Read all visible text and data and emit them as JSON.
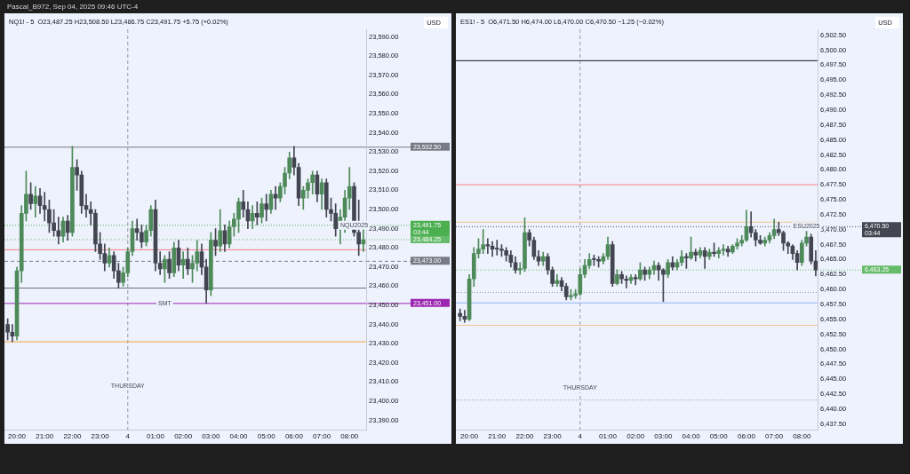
{
  "chart_data": [
    {
      "type": "candlestick",
      "title": "NQ1! - 5  O23,487.25 H23,508.50 L23,486.75 C23,491.75 +5.75 (+0.02%)",
      "ylabel": "USD",
      "annotations": [
        "Pascal_B972, Sep 04, 2025 09:46 UTC-4",
        {
          "text": "THURSDAY",
          "x": "2025-09-04T00:00",
          "y": 23408
        },
        {
          "text": "SMT",
          "x": "2025-09-04T01:20",
          "y": 23451
        },
        {
          "text": "NQU2025",
          "x": "2025-09-04T08:10",
          "y": 23491.75
        }
      ],
      "x": [
        "2025-09-03T19:40",
        "2025-09-03T19:50",
        "2025-09-03T20:00",
        "2025-09-03T20:10",
        "2025-09-03T20:20",
        "2025-09-03T20:30",
        "2025-09-03T20:40",
        "2025-09-03T20:50",
        "2025-09-03T21:00",
        "2025-09-03T21:10",
        "2025-09-03T21:20",
        "2025-09-03T21:30",
        "2025-09-03T21:40",
        "2025-09-03T21:50",
        "2025-09-03T22:00",
        "2025-09-03T22:10",
        "2025-09-03T22:20",
        "2025-09-03T22:30",
        "2025-09-03T22:40",
        "2025-09-03T22:50",
        "2025-09-03T23:00",
        "2025-09-03T23:10",
        "2025-09-03T23:20",
        "2025-09-03T23:30",
        "2025-09-03T23:40",
        "2025-09-03T23:50",
        "2025-09-04T00:00",
        "2025-09-04T00:10",
        "2025-09-04T00:20",
        "2025-09-04T00:30",
        "2025-09-04T00:40",
        "2025-09-04T00:50",
        "2025-09-04T01:00",
        "2025-09-04T01:10",
        "2025-09-04T01:20",
        "2025-09-04T01:30",
        "2025-09-04T01:40",
        "2025-09-04T01:50",
        "2025-09-04T02:00",
        "2025-09-04T02:10",
        "2025-09-04T02:20",
        "2025-09-04T02:30",
        "2025-09-04T02:40",
        "2025-09-04T02:50",
        "2025-09-04T03:00",
        "2025-09-04T03:10",
        "2025-09-04T03:20",
        "2025-09-04T03:30",
        "2025-09-04T03:40",
        "2025-09-04T03:50",
        "2025-09-04T04:00",
        "2025-09-04T04:10",
        "2025-09-04T04:20",
        "2025-09-04T04:30",
        "2025-09-04T04:40",
        "2025-09-04T04:50",
        "2025-09-04T05:00",
        "2025-09-04T05:10",
        "2025-09-04T05:20",
        "2025-09-04T05:30",
        "2025-09-04T05:40",
        "2025-09-04T05:50",
        "2025-09-04T06:00",
        "2025-09-04T06:10",
        "2025-09-04T06:20",
        "2025-09-04T06:30",
        "2025-09-04T06:40",
        "2025-09-04T06:50",
        "2025-09-04T07:00",
        "2025-09-04T07:10",
        "2025-09-04T07:20",
        "2025-09-04T07:30",
        "2025-09-04T07:40",
        "2025-09-04T07:50",
        "2025-09-04T08:00",
        "2025-09-04T08:10",
        "2025-09-04T08:20",
        "2025-09-04T08:30"
      ],
      "ohlc": [
        [
          23440,
          23443,
          23432,
          23436
        ],
        [
          23436,
          23440,
          23431,
          23434
        ],
        [
          23434,
          23470,
          23432,
          23468
        ],
        [
          23468,
          23502,
          23462,
          23498
        ],
        [
          23498,
          23520,
          23494,
          23508
        ],
        [
          23508,
          23514,
          23500,
          23503
        ],
        [
          23503,
          23512,
          23496,
          23507
        ],
        [
          23507,
          23511,
          23498,
          23502
        ],
        [
          23502,
          23509,
          23494,
          23500
        ],
        [
          23500,
          23505,
          23488,
          23493
        ],
        [
          23493,
          23500,
          23486,
          23489
        ],
        [
          23489,
          23496,
          23482,
          23486
        ],
        [
          23486,
          23496,
          23483,
          23494
        ],
        [
          23494,
          23497,
          23484,
          23488
        ],
        [
          23488,
          23533,
          23486,
          23522
        ],
        [
          23522,
          23526,
          23510,
          23518
        ],
        [
          23518,
          23520,
          23498,
          23502
        ],
        [
          23502,
          23508,
          23496,
          23500
        ],
        [
          23500,
          23504,
          23492,
          23498
        ],
        [
          23498,
          23500,
          23478,
          23482
        ],
        [
          23482,
          23488,
          23474,
          23477
        ],
        [
          23477,
          23482,
          23468,
          23472
        ],
        [
          23472,
          23480,
          23470,
          23476
        ],
        [
          23476,
          23478,
          23464,
          23468
        ],
        [
          23468,
          23472,
          23459,
          23462
        ],
        [
          23462,
          23470,
          23460,
          23467
        ],
        [
          23467,
          23480,
          23465,
          23478
        ],
        [
          23478,
          23494,
          23476,
          23490
        ],
        [
          23490,
          23495,
          23484,
          23488
        ],
        [
          23488,
          23492,
          23480,
          23483
        ],
        [
          23483,
          23492,
          23481,
          23489
        ],
        [
          23489,
          23502,
          23486,
          23500
        ],
        [
          23500,
          23505,
          23468,
          23472
        ],
        [
          23472,
          23478,
          23466,
          23469
        ],
        [
          23469,
          23476,
          23462,
          23474
        ],
        [
          23474,
          23478,
          23464,
          23467
        ],
        [
          23467,
          23483,
          23465,
          23480
        ],
        [
          23480,
          23484,
          23468,
          23471
        ],
        [
          23471,
          23478,
          23464,
          23474
        ],
        [
          23474,
          23480,
          23466,
          23469
        ],
        [
          23469,
          23476,
          23462,
          23472
        ],
        [
          23472,
          23484,
          23468,
          23478
        ],
        [
          23478,
          23482,
          23466,
          23470
        ],
        [
          23470,
          23474,
          23451,
          23458
        ],
        [
          23458,
          23488,
          23455,
          23484
        ],
        [
          23484,
          23490,
          23476,
          23481
        ],
        [
          23481,
          23500,
          23478,
          23489
        ],
        [
          23489,
          23492,
          23478,
          23482
        ],
        [
          23482,
          23494,
          23480,
          23491
        ],
        [
          23491,
          23498,
          23486,
          23495
        ],
        [
          23495,
          23506,
          23488,
          23504
        ],
        [
          23504,
          23510,
          23496,
          23500
        ],
        [
          23500,
          23504,
          23490,
          23494
        ],
        [
          23494,
          23502,
          23490,
          23498
        ],
        [
          23498,
          23504,
          23492,
          23496
        ],
        [
          23496,
          23506,
          23493,
          23503
        ],
        [
          23503,
          23508,
          23494,
          23500
        ],
        [
          23500,
          23510,
          23498,
          23508
        ],
        [
          23508,
          23512,
          23500,
          23506
        ],
        [
          23506,
          23514,
          23504,
          23512
        ],
        [
          23512,
          23522,
          23508,
          23519
        ],
        [
          23519,
          23530,
          23516,
          23527
        ],
        [
          23527,
          23533,
          23518,
          23522
        ],
        [
          23522,
          23524,
          23502,
          23506
        ],
        [
          23506,
          23512,
          23500,
          23510
        ],
        [
          23510,
          23516,
          23506,
          23514
        ],
        [
          23514,
          23520,
          23508,
          23518
        ],
        [
          23518,
          23520,
          23504,
          23508
        ],
        [
          23508,
          23516,
          23500,
          23514
        ],
        [
          23514,
          23516,
          23496,
          23500
        ],
        [
          23500,
          23506,
          23494,
          23498
        ],
        [
          23498,
          23503,
          23486,
          23490
        ],
        [
          23490,
          23500,
          23482,
          23496
        ],
        [
          23496,
          23510,
          23488,
          23506
        ],
        [
          23506,
          23522,
          23500,
          23512
        ],
        [
          23512,
          23514,
          23486,
          23488
        ],
        [
          23488,
          23505,
          23476,
          23482
        ],
        [
          23482,
          23494,
          23478,
          23484.25
        ]
      ],
      "colors": [
        "#434651",
        "#434651",
        "#4e8a5a",
        "#4e8a5a",
        "#4e8a5a",
        "#434651",
        "#4e8a5a",
        "#434651",
        "#434651",
        "#434651",
        "#434651",
        "#434651",
        "#4e8a5a",
        "#434651",
        "#4e8a5a",
        "#434651",
        "#434651",
        "#434651",
        "#434651",
        "#434651",
        "#434651",
        "#434651",
        "#4e8a5a",
        "#434651",
        "#434651",
        "#4e8a5a",
        "#4e8a5a",
        "#4e8a5a",
        "#434651",
        "#434651",
        "#4e8a5a",
        "#4e8a5a",
        "#434651",
        "#434651",
        "#4e8a5a",
        "#434651",
        "#4e8a5a",
        "#434651",
        "#4e8a5a",
        "#434651",
        "#4e8a5a",
        "#4e8a5a",
        "#434651",
        "#434651",
        "#4e8a5a",
        "#434651",
        "#4e8a5a",
        "#434651",
        "#4e8a5a",
        "#4e8a5a",
        "#4e8a5a",
        "#434651",
        "#434651",
        "#4e8a5a",
        "#434651",
        "#4e8a5a",
        "#434651",
        "#4e8a5a",
        "#434651",
        "#4e8a5a",
        "#4e8a5a",
        "#4e8a5a",
        "#434651",
        "#434651",
        "#4e8a5a",
        "#4e8a5a",
        "#4e8a5a",
        "#434651",
        "#4e8a5a",
        "#434651",
        "#434651",
        "#434651",
        "#4e8a5a",
        "#4e8a5a",
        "#4e8a5a",
        "#434651",
        "#434651",
        "#4e8a5a"
      ],
      "xlim": [
        "2025-09-03T19:33",
        "2025-09-04T08:36"
      ],
      "xticks": [
        {
          "value": "2025-09-03T20:00",
          "label": "20:00"
        },
        {
          "value": "2025-09-03T21:00",
          "label": "21:00"
        },
        {
          "value": "2025-09-03T22:00",
          "label": "22:00"
        },
        {
          "value": "2025-09-03T23:00",
          "label": "23:00"
        },
        {
          "value": "2025-09-04T00:00",
          "label": "4"
        },
        {
          "value": "2025-09-04T01:00",
          "label": "01:00"
        },
        {
          "value": "2025-09-04T02:00",
          "label": "02:00"
        },
        {
          "value": "2025-09-04T03:00",
          "label": "03:00"
        },
        {
          "value": "2025-09-04T04:00",
          "label": "04:00"
        },
        {
          "value": "2025-09-04T05:00",
          "label": "05:00"
        },
        {
          "value": "2025-09-04T06:00",
          "label": "06:00"
        },
        {
          "value": "2025-09-04T07:00",
          "label": "07:00"
        },
        {
          "value": "2025-09-04T08:00",
          "label": "08:00"
        }
      ],
      "ylim": [
        23385,
        23594
      ],
      "yticks": [
        {
          "value": 23390,
          "label": "23,390.00"
        },
        {
          "value": 23400,
          "label": "23,400.00"
        },
        {
          "value": 23410,
          "label": "23,410.00"
        },
        {
          "value": 23420,
          "label": "23,420.00"
        },
        {
          "value": 23430,
          "label": "23,430.00"
        },
        {
          "value": 23440,
          "label": "23,440.00"
        },
        {
          "value": 23450,
          "label": "23,450.00"
        },
        {
          "value": 23460,
          "label": "23,460.00"
        },
        {
          "value": 23470,
          "label": "23,470.00"
        },
        {
          "value": 23480,
          "label": "23,480.00"
        },
        {
          "value": 23490,
          "label": "23,490.00"
        },
        {
          "value": 23500,
          "label": "23,500.00"
        },
        {
          "value": 23510,
          "label": "23,510.00"
        },
        {
          "value": 23520,
          "label": "23,520.00"
        },
        {
          "value": 23530,
          "label": "23,530.00"
        },
        {
          "value": 23540,
          "label": "23,540.00"
        },
        {
          "value": 23550,
          "label": "23,550.00"
        },
        {
          "value": 23560,
          "label": "23,560.00"
        },
        {
          "value": 23570,
          "label": "23,570.00"
        },
        {
          "value": 23580,
          "label": "23,580.00"
        },
        {
          "value": 23590,
          "label": "23,590.00"
        }
      ],
      "ref_lines": [
        {
          "axis": "x",
          "value": "2025-09-04T00:00",
          "color": "#9598a1",
          "line_style": "dashed"
        },
        {
          "axis": "y",
          "value": 23532.5,
          "label": "23,532.50",
          "color": "#787b86",
          "line_style": "solid"
        },
        {
          "axis": "y",
          "value": 23491.75,
          "label": "23,491.75\n03:44",
          "color": "#4caf50",
          "line_style": "dotted"
        },
        {
          "axis": "y",
          "value": 23479,
          "color": "#f77c80",
          "line_style": "solid"
        },
        {
          "axis": "y",
          "value": 23484.25,
          "label": "23,484.25",
          "color": "#66bb6a",
          "line_style": "dotted"
        },
        {
          "axis": "y",
          "value": 23473,
          "label": "23,473.00",
          "color": "#787b86",
          "line_style": "dashed"
        },
        {
          "axis": "y",
          "value": 23459,
          "color": "#6b6e78",
          "line_style": "solid"
        },
        {
          "axis": "y",
          "value": 23451,
          "label": "23,451.00",
          "color": "#9c27b0",
          "line_style": "solid"
        },
        {
          "axis": "y",
          "value": 23431,
          "color": "#f7a740",
          "line_style": "solid"
        }
      ]
    },
    {
      "type": "candlestick",
      "title": "ES1! - 5  O6,471.50 H6,474.00 L6,470.00 C6,470.50 −1.25 (−0.02%)",
      "ylabel": "USD",
      "annotations": [
        {
          "text": "THURSDAY",
          "x": "2025-09-04T00:00",
          "y": 6443.5
        },
        {
          "text": "ESU2025",
          "x": "2025-09-04T08:10",
          "y": 6470.5
        }
      ],
      "x": [
        "2025-09-03T19:40",
        "2025-09-03T19:50",
        "2025-09-03T20:00",
        "2025-09-03T20:10",
        "2025-09-03T20:20",
        "2025-09-03T20:30",
        "2025-09-03T20:40",
        "2025-09-03T20:50",
        "2025-09-03T21:00",
        "2025-09-03T21:10",
        "2025-09-03T21:20",
        "2025-09-03T21:30",
        "2025-09-03T21:40",
        "2025-09-03T21:50",
        "2025-09-03T22:00",
        "2025-09-03T22:10",
        "2025-09-03T22:20",
        "2025-09-03T22:30",
        "2025-09-03T22:40",
        "2025-09-03T22:50",
        "2025-09-03T23:00",
        "2025-09-03T23:10",
        "2025-09-03T23:20",
        "2025-09-03T23:30",
        "2025-09-03T23:40",
        "2025-09-03T23:50",
        "2025-09-04T00:00",
        "2025-09-04T00:10",
        "2025-09-04T00:20",
        "2025-09-04T00:30",
        "2025-09-04T00:40",
        "2025-09-04T00:50",
        "2025-09-04T01:00",
        "2025-09-04T01:10",
        "2025-09-04T01:20",
        "2025-09-04T01:30",
        "2025-09-04T01:40",
        "2025-09-04T01:50",
        "2025-09-04T02:00",
        "2025-09-04T02:10",
        "2025-09-04T02:20",
        "2025-09-04T02:30",
        "2025-09-04T02:40",
        "2025-09-04T02:50",
        "2025-09-04T03:00",
        "2025-09-04T03:10",
        "2025-09-04T03:20",
        "2025-09-04T03:30",
        "2025-09-04T03:40",
        "2025-09-04T03:50",
        "2025-09-04T04:00",
        "2025-09-04T04:10",
        "2025-09-04T04:20",
        "2025-09-04T04:30",
        "2025-09-04T04:40",
        "2025-09-04T04:50",
        "2025-09-04T05:00",
        "2025-09-04T05:10",
        "2025-09-04T05:20",
        "2025-09-04T05:30",
        "2025-09-04T05:40",
        "2025-09-04T05:50",
        "2025-09-04T06:00",
        "2025-09-04T06:10",
        "2025-09-04T06:20",
        "2025-09-04T06:30",
        "2025-09-04T06:40",
        "2025-09-04T06:50",
        "2025-09-04T07:00",
        "2025-09-04T07:10",
        "2025-09-04T07:20",
        "2025-09-04T07:30",
        "2025-09-04T07:40",
        "2025-09-04T07:50",
        "2025-09-04T08:00",
        "2025-09-04T08:10",
        "2025-09-04T08:20",
        "2025-09-04T08:30"
      ],
      "ohlc": [
        [
          6456,
          6456.75,
          6454.75,
          6455.5
        ],
        [
          6455.5,
          6456.5,
          6454.5,
          6455
        ],
        [
          6455,
          6462.5,
          6454.75,
          6461.75
        ],
        [
          6461.75,
          6467,
          6460.5,
          6466
        ],
        [
          6466,
          6468.5,
          6465.25,
          6466.75
        ],
        [
          6466.75,
          6470,
          6466,
          6467.5
        ],
        [
          6467.5,
          6468.5,
          6466,
          6467.25
        ],
        [
          6467.25,
          6468,
          6465.5,
          6466.75
        ],
        [
          6466.75,
          6468.25,
          6465.75,
          6466.75
        ],
        [
          6466.75,
          6467.5,
          6465.5,
          6466.5
        ],
        [
          6466.5,
          6467,
          6464.75,
          6465.75
        ],
        [
          6465.75,
          6466.5,
          6463.75,
          6464.5
        ],
        [
          6464.5,
          6465.5,
          6462.75,
          6463.25
        ],
        [
          6463.25,
          6464.5,
          6462.5,
          6463.5
        ],
        [
          6463.5,
          6472,
          6463,
          6469.5
        ],
        [
          6469.5,
          6470,
          6467.25,
          6468.25
        ],
        [
          6468.25,
          6468.75,
          6465,
          6465.5
        ],
        [
          6465.5,
          6466.5,
          6464,
          6464.75
        ],
        [
          6464.75,
          6466.25,
          6464,
          6465.5
        ],
        [
          6465.5,
          6466,
          6462.5,
          6463.25
        ],
        [
          6463.25,
          6463.75,
          6460.5,
          6461
        ],
        [
          6461,
          6462.5,
          6460.5,
          6461.5
        ],
        [
          6461.5,
          6462,
          6459.75,
          6460.5
        ],
        [
          6460.5,
          6461,
          6458.25,
          6458.75
        ],
        [
          6458.75,
          6460,
          6458.25,
          6459
        ],
        [
          6459,
          6460,
          6458.5,
          6459.25
        ],
        [
          6459.25,
          6463.5,
          6459,
          6462.5
        ],
        [
          6462.5,
          6465,
          6462,
          6464
        ],
        [
          6464,
          6466,
          6463.5,
          6465
        ],
        [
          6465,
          6465.75,
          6464,
          6465
        ],
        [
          6465,
          6465.5,
          6463.75,
          6464.75
        ],
        [
          6464.75,
          6466,
          6464.25,
          6465.5
        ],
        [
          6465.5,
          6468.75,
          6465,
          6467.5
        ],
        [
          6467.5,
          6468,
          6460.5,
          6461
        ],
        [
          6461,
          6463.25,
          6460.75,
          6462.5
        ],
        [
          6462.5,
          6463,
          6461,
          6461.75
        ],
        [
          6461.75,
          6462.25,
          6460.25,
          6461.5
        ],
        [
          6461.5,
          6462.5,
          6461,
          6462
        ],
        [
          6462,
          6462.5,
          6460.75,
          6461.75
        ],
        [
          6461.75,
          6464.5,
          6461.5,
          6463.25
        ],
        [
          6463.25,
          6463.75,
          6461.5,
          6462.5
        ],
        [
          6462.5,
          6463.75,
          6461.75,
          6463.25
        ],
        [
          6463.25,
          6464.75,
          6462.5,
          6464
        ],
        [
          6464,
          6464.5,
          6461.5,
          6463.25
        ],
        [
          6463.25,
          6463.5,
          6458,
          6462.5
        ],
        [
          6462.5,
          6465,
          6462,
          6464.5
        ],
        [
          6464.5,
          6465.5,
          6463.25,
          6463.75
        ],
        [
          6463.75,
          6465,
          6463.25,
          6464.5
        ],
        [
          6464.5,
          6466.5,
          6464,
          6465.5
        ],
        [
          6465.5,
          6466,
          6463.5,
          6465.25
        ],
        [
          6465.25,
          6468.75,
          6465,
          6466.25
        ],
        [
          6466.25,
          6466.75,
          6464.75,
          6465.75
        ],
        [
          6465.75,
          6467,
          6465.25,
          6466.5
        ],
        [
          6466.5,
          6467,
          6463.5,
          6465.5
        ],
        [
          6465.5,
          6466.75,
          6465,
          6466.25
        ],
        [
          6466.25,
          6467.75,
          6465.5,
          6466
        ],
        [
          6466,
          6467,
          6465.25,
          6466.5
        ],
        [
          6466.5,
          6467.5,
          6465.75,
          6466.75
        ],
        [
          6466.75,
          6467.25,
          6465.5,
          6466.25
        ],
        [
          6466.25,
          6467.5,
          6466,
          6467.25
        ],
        [
          6467.25,
          6468.5,
          6466.75,
          6467.75
        ],
        [
          6467.75,
          6469,
          6467.25,
          6468.25
        ],
        [
          6468.25,
          6473.25,
          6468,
          6470.5
        ],
        [
          6470.5,
          6473,
          6468.75,
          6469.5
        ],
        [
          6469.5,
          6470,
          6467.25,
          6468.25
        ],
        [
          6468.25,
          6469,
          6467.5,
          6467.75
        ],
        [
          6467.75,
          6468.75,
          6467.25,
          6468.25
        ],
        [
          6468.25,
          6469.5,
          6467.75,
          6469
        ],
        [
          6469,
          6471.75,
          6468.5,
          6470
        ],
        [
          6470,
          6471.25,
          6469,
          6469.5
        ],
        [
          6469.5,
          6469.75,
          6466.5,
          6467.75
        ],
        [
          6467.75,
          6468,
          6466,
          6467.25
        ],
        [
          6467.25,
          6467.5,
          6465,
          6466
        ],
        [
          6466,
          6466.5,
          6463.25,
          6464.5
        ],
        [
          6464.5,
          6468.25,
          6464,
          6467.75
        ],
        [
          6467.75,
          6471,
          6467.25,
          6468.75
        ],
        [
          6468.75,
          6469.25,
          6464.25,
          6464.75
        ],
        [
          6464.75,
          6466.5,
          6462.25,
          6463.25
        ]
      ],
      "colors": [
        "#434651",
        "#434651",
        "#4e8a5a",
        "#4e8a5a",
        "#4e8a5a",
        "#4e8a5a",
        "#434651",
        "#434651",
        "#434651",
        "#434651",
        "#434651",
        "#434651",
        "#434651",
        "#4e8a5a",
        "#4e8a5a",
        "#434651",
        "#434651",
        "#434651",
        "#4e8a5a",
        "#434651",
        "#434651",
        "#4e8a5a",
        "#434651",
        "#434651",
        "#4e8a5a",
        "#4e8a5a",
        "#4e8a5a",
        "#4e8a5a",
        "#4e8a5a",
        "#434651",
        "#434651",
        "#4e8a5a",
        "#4e8a5a",
        "#434651",
        "#4e8a5a",
        "#434651",
        "#434651",
        "#4e8a5a",
        "#434651",
        "#4e8a5a",
        "#434651",
        "#4e8a5a",
        "#4e8a5a",
        "#434651",
        "#434651",
        "#4e8a5a",
        "#434651",
        "#4e8a5a",
        "#4e8a5a",
        "#434651",
        "#4e8a5a",
        "#434651",
        "#4e8a5a",
        "#434651",
        "#4e8a5a",
        "#434651",
        "#4e8a5a",
        "#4e8a5a",
        "#434651",
        "#4e8a5a",
        "#4e8a5a",
        "#4e8a5a",
        "#4e8a5a",
        "#434651",
        "#434651",
        "#434651",
        "#4e8a5a",
        "#4e8a5a",
        "#4e8a5a",
        "#434651",
        "#434651",
        "#434651",
        "#434651",
        "#434651",
        "#4e8a5a",
        "#4e8a5a",
        "#434651",
        "#434651"
      ],
      "xlim": [
        "2025-09-03T19:31",
        "2025-09-04T08:34"
      ],
      "xticks": [
        {
          "value": "2025-09-03T20:00",
          "label": "20:00"
        },
        {
          "value": "2025-09-03T21:00",
          "label": "21:00"
        },
        {
          "value": "2025-09-03T22:00",
          "label": "22:00"
        },
        {
          "value": "2025-09-03T23:00",
          "label": "23:00"
        },
        {
          "value": "2025-09-04T00:00",
          "label": "4"
        },
        {
          "value": "2025-09-04T01:00",
          "label": "01:00"
        },
        {
          "value": "2025-09-04T02:00",
          "label": "02:00"
        },
        {
          "value": "2025-09-04T03:00",
          "label": "03:00"
        },
        {
          "value": "2025-09-04T04:00",
          "label": "04:00"
        },
        {
          "value": "2025-09-04T05:00",
          "label": "05:00"
        },
        {
          "value": "2025-09-04T06:00",
          "label": "06:00"
        },
        {
          "value": "2025-09-04T07:00",
          "label": "07:00"
        },
        {
          "value": "2025-09-04T08:00",
          "label": "08:00"
        }
      ],
      "ylim": [
        6436.5,
        6503.5
      ],
      "yticks": [
        {
          "value": 6437.5,
          "label": "6,437.50"
        },
        {
          "value": 6440,
          "label": "6,440.00"
        },
        {
          "value": 6442.5,
          "label": "6,442.50"
        },
        {
          "value": 6445,
          "label": "6,445.00"
        },
        {
          "value": 6447.5,
          "label": "6,447.50"
        },
        {
          "value": 6450,
          "label": "6,450.00"
        },
        {
          "value": 6452.5,
          "label": "6,452.50"
        },
        {
          "value": 6455,
          "label": "6,455.00"
        },
        {
          "value": 6457.5,
          "label": "6,457.50"
        },
        {
          "value": 6460,
          "label": "6,460.00"
        },
        {
          "value": 6462.5,
          "label": "6,462.50"
        },
        {
          "value": 6465,
          "label": "6,465.00"
        },
        {
          "value": 6467.5,
          "label": "6,467.50"
        },
        {
          "value": 6470,
          "label": "6,470.00"
        },
        {
          "value": 6472.5,
          "label": "6,472.50"
        },
        {
          "value": 6475,
          "label": "6,475.00"
        },
        {
          "value": 6477.5,
          "label": "6,477.50"
        },
        {
          "value": 6480,
          "label": "6,480.00"
        },
        {
          "value": 6482.5,
          "label": "6,482.50"
        },
        {
          "value": 6485,
          "label": "6,485.00"
        },
        {
          "value": 6487.5,
          "label": "6,487.50"
        },
        {
          "value": 6490,
          "label": "6,490.00"
        },
        {
          "value": 6492.5,
          "label": "6,492.50"
        },
        {
          "value": 6495,
          "label": "6,495.00"
        },
        {
          "value": 6497.5,
          "label": "6,497.50"
        },
        {
          "value": 6500,
          "label": "6,500.00"
        },
        {
          "value": 6502.5,
          "label": "6,502.50"
        }
      ],
      "ref_lines": [
        {
          "axis": "x",
          "value": "2025-09-04T00:00",
          "color": "#9598a1",
          "line_style": "dashed"
        },
        {
          "axis": "y",
          "value": 6498.25,
          "color": "#131722",
          "line_style": "solid"
        },
        {
          "axis": "y",
          "value": 6477.5,
          "color": "#f77c80",
          "line_style": "solid"
        },
        {
          "axis": "y",
          "value": 6471.25,
          "color": "#f7c38b",
          "line_style": "solid"
        },
        {
          "axis": "y",
          "value": 6470.5,
          "label": "6,470.50\n03:44",
          "color": "#434651",
          "line_style": "dotted"
        },
        {
          "axis": "y",
          "value": 6463.25,
          "label": "6,463.25",
          "color": "#66bb6a",
          "line_style": "dotted"
        },
        {
          "axis": "y",
          "value": 6459.5,
          "color": "#9598a1",
          "line_style": "dotted"
        },
        {
          "axis": "y",
          "value": 6457.75,
          "color": "#90b4f8",
          "line_style": "solid"
        },
        {
          "axis": "y",
          "value": 6454,
          "color": "#f7c38b",
          "line_style": "solid"
        },
        {
          "axis": "y",
          "value": 6441.5,
          "color": "#9598a1",
          "line_style": "dotted"
        }
      ]
    }
  ]
}
